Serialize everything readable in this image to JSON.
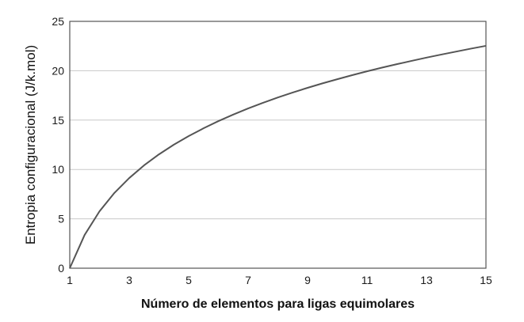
{
  "chart_data": {
    "type": "line",
    "title": "",
    "xlabel": "Número de elementos para ligas equimolares",
    "ylabel": "Entropia configuracional (J/k.mol)",
    "xlim": [
      1,
      15
    ],
    "ylim": [
      0,
      25
    ],
    "xticks": [
      1,
      3,
      5,
      7,
      9,
      11,
      13,
      15
    ],
    "yticks": [
      0,
      5,
      10,
      15,
      20,
      25
    ],
    "grid": "horizontal",
    "legend": "none",
    "series": [
      {
        "x": [
          1,
          1.5,
          2,
          2.5,
          3,
          3.5,
          4,
          4.5,
          5,
          5.5,
          6,
          6.5,
          7,
          7.5,
          8,
          8.5,
          9,
          9.5,
          10,
          10.5,
          11,
          11.5,
          12,
          12.5,
          13,
          13.5,
          14,
          14.5,
          15
        ],
        "y": [
          0,
          3.37,
          5.76,
          7.62,
          9.13,
          10.42,
          11.53,
          12.51,
          13.38,
          14.17,
          14.9,
          15.56,
          16.18,
          16.75,
          17.29,
          17.79,
          18.27,
          18.72,
          19.14,
          19.55,
          19.94,
          20.31,
          20.66,
          21.0,
          21.33,
          21.64,
          21.94,
          22.24,
          22.52
        ],
        "color": "#555555"
      }
    ]
  }
}
